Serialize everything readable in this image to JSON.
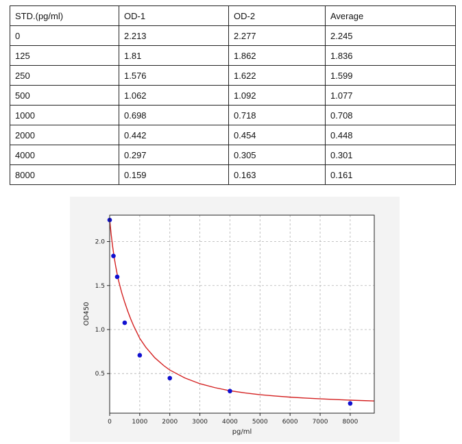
{
  "table": {
    "headers": [
      "STD.(pg/ml)",
      "OD-1",
      "OD-2",
      "Average"
    ],
    "rows": [
      [
        "0",
        "2.213",
        "2.277",
        "2.245"
      ],
      [
        "125",
        "1.81",
        "1.862",
        "1.836"
      ],
      [
        "250",
        "1.576",
        "1.622",
        "1.599"
      ],
      [
        "500",
        "1.062",
        "1.092",
        "1.077"
      ],
      [
        "1000",
        "0.698",
        "0.718",
        "0.708"
      ],
      [
        "2000",
        "0.442",
        "0.454",
        "0.448"
      ],
      [
        "4000",
        "0.297",
        "0.305",
        "0.301"
      ],
      [
        "8000",
        "0.159",
        "0.163",
        "0.161"
      ]
    ]
  },
  "chart_data": {
    "type": "scatter",
    "title": "",
    "xlabel": "pg/ml",
    "ylabel": "OD450",
    "xlim": [
      0,
      8800
    ],
    "ylim": [
      0.05,
      2.3
    ],
    "x_ticks": [
      0,
      1000,
      2000,
      3000,
      4000,
      5000,
      6000,
      7000,
      8000
    ],
    "y_ticks": [
      0.5,
      1.0,
      1.5,
      2.0
    ],
    "x_tick_labels": [
      "0",
      "1000",
      "2000",
      "3000",
      "4000",
      "5000",
      "6000",
      "7000",
      "8000"
    ],
    "y_tick_labels": [
      "0.5",
      "1.0",
      "1.5",
      "2.0"
    ],
    "grid": true,
    "points": {
      "x": [
        0,
        125,
        250,
        500,
        1000,
        2000,
        4000,
        8000
      ],
      "y": [
        2.245,
        1.836,
        1.599,
        1.077,
        0.708,
        0.448,
        0.301,
        0.161
      ],
      "color": "#1010d0"
    },
    "fit_curve": {
      "x": [
        0,
        50,
        100,
        150,
        200,
        250,
        300,
        400,
        500,
        600,
        700,
        800,
        1000,
        1200,
        1500,
        1800,
        2000,
        2500,
        3000,
        3500,
        4000,
        4500,
        5000,
        5500,
        6000,
        6500,
        7000,
        7500,
        8000,
        8500,
        8800
      ],
      "y": [
        2.25,
        2.08,
        1.94,
        1.82,
        1.72,
        1.63,
        1.55,
        1.42,
        1.31,
        1.21,
        1.12,
        1.04,
        0.9,
        0.8,
        0.68,
        0.59,
        0.54,
        0.45,
        0.385,
        0.34,
        0.305,
        0.28,
        0.26,
        0.245,
        0.232,
        0.222,
        0.213,
        0.205,
        0.198,
        0.192,
        0.189
      ],
      "color": "#d42020"
    }
  }
}
